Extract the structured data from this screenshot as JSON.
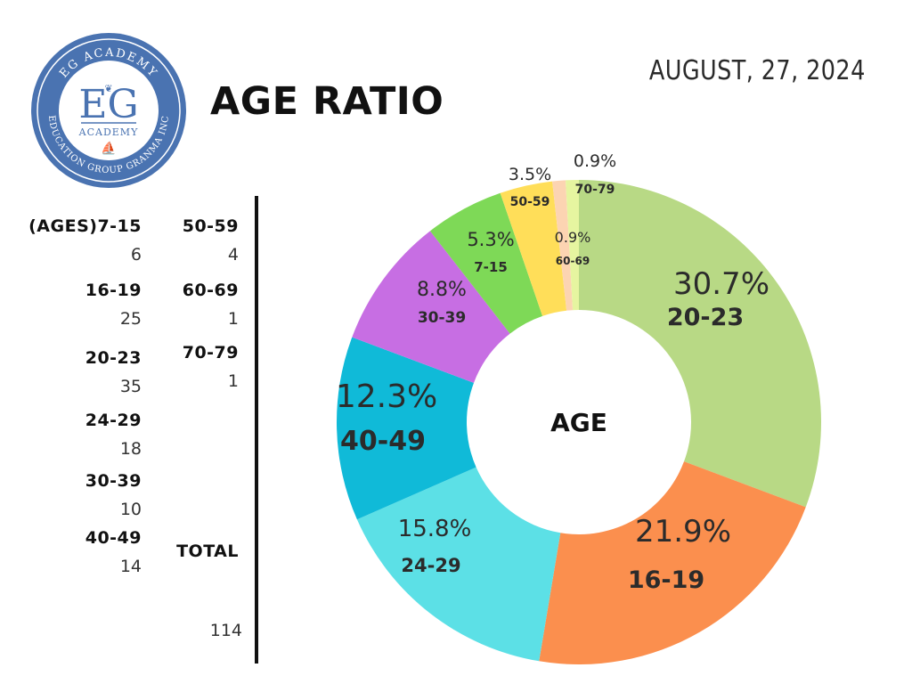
{
  "logo": {
    "arc_top": "EG ACADEMY",
    "initials": "EG",
    "subtitle": "ACADEMY",
    "arc_bottom": "EDUCATION GROUP GRANMA INC",
    "ring_color": "#4a73b1"
  },
  "title": "AGE RATIO",
  "date": "AUGUST, 27, 2024",
  "legend": {
    "column1": [
      {
        "label": "(AGES)7-15",
        "count": "6"
      },
      {
        "label": "16-19",
        "count": "25"
      },
      {
        "label": "20-23",
        "count": "35"
      },
      {
        "label": "24-29",
        "count": "18"
      },
      {
        "label": "30-39",
        "count": "10"
      },
      {
        "label": "40-49",
        "count": "14"
      }
    ],
    "column2": [
      {
        "label": "50-59",
        "count": "4"
      },
      {
        "label": "60-69",
        "count": "1"
      },
      {
        "label": "70-79",
        "count": "1"
      }
    ],
    "total_label": "TOTAL",
    "total_value": "114"
  },
  "chart_data": {
    "type": "pie",
    "center_label": "AGE",
    "donut": true,
    "start": "12 o'clock, clockwise",
    "slices": [
      {
        "category": "20-23",
        "value": 35,
        "percent_label": "30.7%",
        "color": "#b8d985"
      },
      {
        "category": "16-19",
        "value": 25,
        "percent_label": "21.9%",
        "color": "#fb8f4e"
      },
      {
        "category": "24-29",
        "value": 18,
        "percent_label": "15.8%",
        "color": "#5ce0e6"
      },
      {
        "category": "40-49",
        "value": 14,
        "percent_label": "12.3%",
        "color": "#10bad8"
      },
      {
        "category": "30-39",
        "value": 10,
        "percent_label": "8.8%",
        "color": "#c76ee3"
      },
      {
        "category": "7-15",
        "value": 6,
        "percent_label": "5.3%",
        "color": "#7ed957"
      },
      {
        "category": "50-59",
        "value": 4,
        "percent_label": "3.5%",
        "color": "#ffde59"
      },
      {
        "category": "60-69",
        "value": 1,
        "percent_label": "0.9%",
        "color": "#fcd4b2"
      },
      {
        "category": "70-79",
        "value": 1,
        "percent_label": "0.9%",
        "color": "#e6f5a0"
      }
    ]
  }
}
